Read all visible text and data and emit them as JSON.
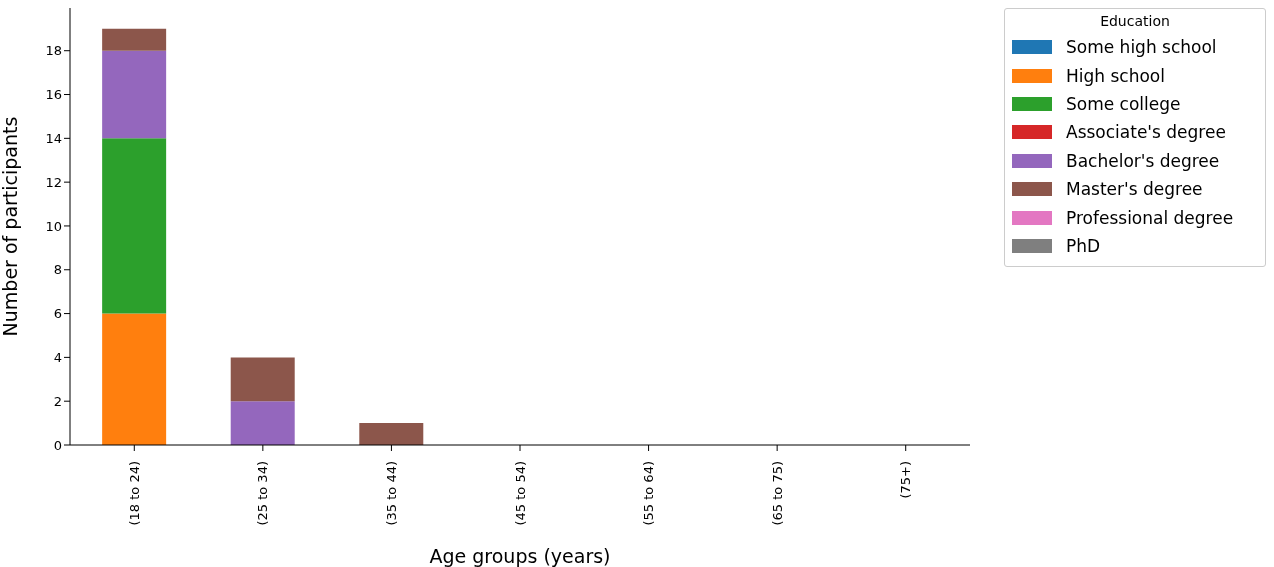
{
  "chart_data": {
    "type": "bar",
    "stacked": true,
    "xlabel": "Age groups (years)",
    "ylabel": "Number of participants",
    "legend_title": "Education",
    "categories": [
      "(18 to 24)",
      "(25 to 34)",
      "(35 to 44)",
      "(45 to 54)",
      "(55 to 64)",
      "(65 to 75)",
      "(75+)"
    ],
    "series": [
      {
        "name": "Some high school",
        "color": "#1f77b4",
        "values": [
          0,
          0,
          0,
          0,
          0,
          0,
          0
        ]
      },
      {
        "name": "High school",
        "color": "#ff7f0e",
        "values": [
          6,
          0,
          0,
          0,
          0,
          0,
          0
        ]
      },
      {
        "name": "Some college",
        "color": "#2ca02c",
        "values": [
          8,
          0,
          0,
          0,
          0,
          0,
          0
        ]
      },
      {
        "name": "Associate's degree",
        "color": "#d62728",
        "values": [
          0,
          0,
          0,
          0,
          0,
          0,
          0
        ]
      },
      {
        "name": "Bachelor's degree",
        "color": "#9467bd",
        "values": [
          4,
          2,
          0,
          0,
          0,
          0,
          0
        ]
      },
      {
        "name": "Master's degree",
        "color": "#8c564b",
        "values": [
          1,
          2,
          1,
          0,
          0,
          0,
          0
        ]
      },
      {
        "name": "Professional degree",
        "color": "#e377c2",
        "values": [
          0,
          0,
          0,
          0,
          0,
          0,
          0
        ]
      },
      {
        "name": "PhD",
        "color": "#7f7f7f",
        "values": [
          0,
          0,
          0,
          0,
          0,
          0,
          0
        ]
      }
    ],
    "ylim": [
      0,
      19.95
    ],
    "yticks": [
      0,
      2,
      4,
      6,
      8,
      10,
      12,
      14,
      16,
      18
    ],
    "legend": "top right"
  }
}
